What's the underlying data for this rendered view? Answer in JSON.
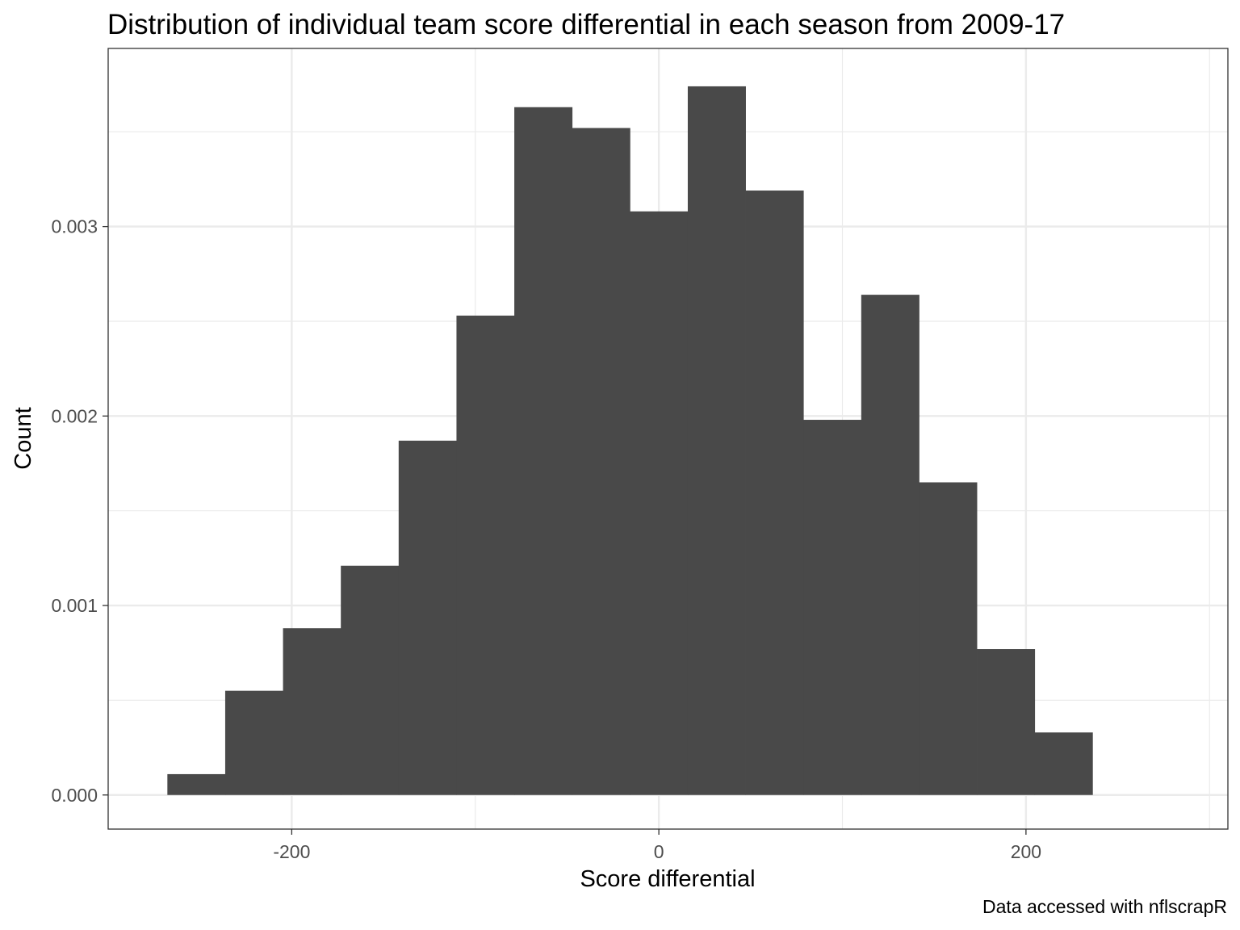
{
  "chart_data": {
    "type": "bar",
    "title": "Distribution of individual team score differential in each season from 2009-17",
    "xlabel": "Score differential",
    "ylabel": "Count",
    "caption": "Data accessed with nflscrapR",
    "xlim": [
      -300,
      310
    ],
    "ylim": [
      -0.00018,
      0.00394
    ],
    "x_ticks": [
      -200,
      0,
      200
    ],
    "x_tick_labels": [
      "-200",
      "0",
      "200"
    ],
    "y_ticks": [
      0.0,
      0.001,
      0.002,
      0.003
    ],
    "y_tick_labels": [
      "0.000",
      "0.001",
      "0.002",
      "0.003"
    ],
    "grid": true,
    "bar_color": "#494949",
    "bin_width": 31.5,
    "bin_centers": [
      -252,
      -220.5,
      -189,
      -157.5,
      -126,
      -94.5,
      -63,
      -31.5,
      0,
      31.5,
      63,
      94.5,
      126,
      157.5,
      189,
      220.5
    ],
    "values": [
      0.00011,
      0.00055,
      0.00088,
      0.00121,
      0.00187,
      0.00253,
      0.00363,
      0.00352,
      0.00308,
      0.00374,
      0.00319,
      0.00198,
      0.00264,
      0.00165,
      0.00077,
      0.00033
    ]
  }
}
